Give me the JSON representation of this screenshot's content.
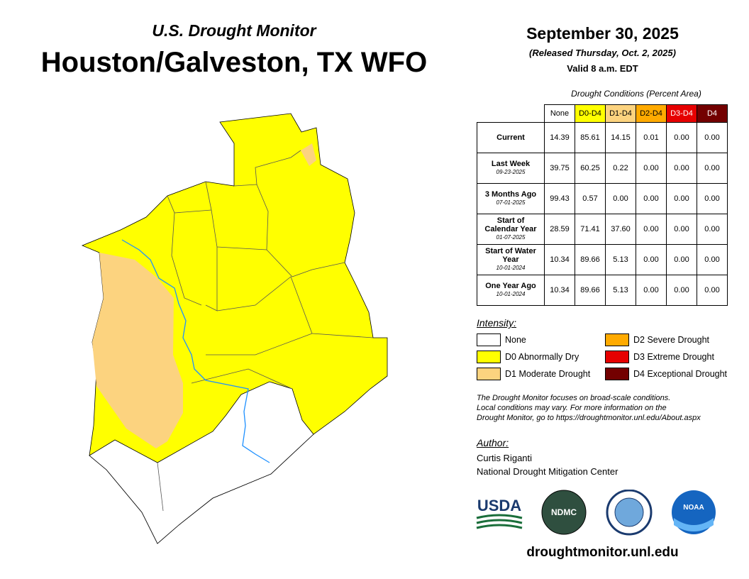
{
  "header": {
    "subtitle": "U.S. Drought Monitor",
    "title": "Houston/Galveston, TX WFO"
  },
  "date": {
    "date": "September 30, 2025",
    "released": "(Released Thursday, Oct. 2, 2025)",
    "valid": "Valid 8 a.m. EDT"
  },
  "table": {
    "caption": "Drought Conditions (Percent Area)",
    "columns": [
      "None",
      "D0-D4",
      "D1-D4",
      "D2-D4",
      "D3-D4",
      "D4"
    ],
    "rows": [
      {
        "label": "Current",
        "values": [
          "14.39",
          "85.61",
          "14.15",
          "0.01",
          "0.00",
          "0.00"
        ]
      },
      {
        "label": "Last Week",
        "date": "09-23-2025",
        "values": [
          "39.75",
          "60.25",
          "0.22",
          "0.00",
          "0.00",
          "0.00"
        ]
      },
      {
        "label": "3 Months Ago",
        "date": "07-01-2025",
        "values": [
          "99.43",
          "0.57",
          "0.00",
          "0.00",
          "0.00",
          "0.00"
        ]
      },
      {
        "label": "Start of Calendar Year",
        "date": "01-07-2025",
        "values": [
          "28.59",
          "71.41",
          "37.60",
          "0.00",
          "0.00",
          "0.00"
        ]
      },
      {
        "label": "Start of Water Year",
        "date": "10-01-2024",
        "values": [
          "10.34",
          "89.66",
          "5.13",
          "0.00",
          "0.00",
          "0.00"
        ]
      },
      {
        "label": "One Year Ago",
        "date": "10-01-2024",
        "values": [
          "10.34",
          "89.66",
          "5.13",
          "0.00",
          "0.00",
          "0.00"
        ]
      }
    ]
  },
  "legend": {
    "title": "Intensity:",
    "items": [
      {
        "label": "None",
        "color": "#ffffff"
      },
      {
        "label": "D0 Abnormally Dry",
        "color": "#ffff00"
      },
      {
        "label": "D1 Moderate Drought",
        "color": "#fcd37f"
      },
      {
        "label": "D2 Severe Drought",
        "color": "#ffaa00"
      },
      {
        "label": "D3 Extreme Drought",
        "color": "#e60000"
      },
      {
        "label": "D4 Exceptional Drought",
        "color": "#730000"
      }
    ]
  },
  "note": [
    "The Drought Monitor focuses on broad-scale conditions.",
    "Local conditions may vary. For more information on the",
    "Drought Monitor, go to https://droughtmonitor.unl.edu/About.aspx"
  ],
  "author": {
    "title": "Author:",
    "name": "Curtis Riganti",
    "org": "National Drought Mitigation Center"
  },
  "logos": [
    "USDA",
    "NDMC",
    "NOAA"
  ],
  "footer": "droughtmonitor.unl.edu"
}
